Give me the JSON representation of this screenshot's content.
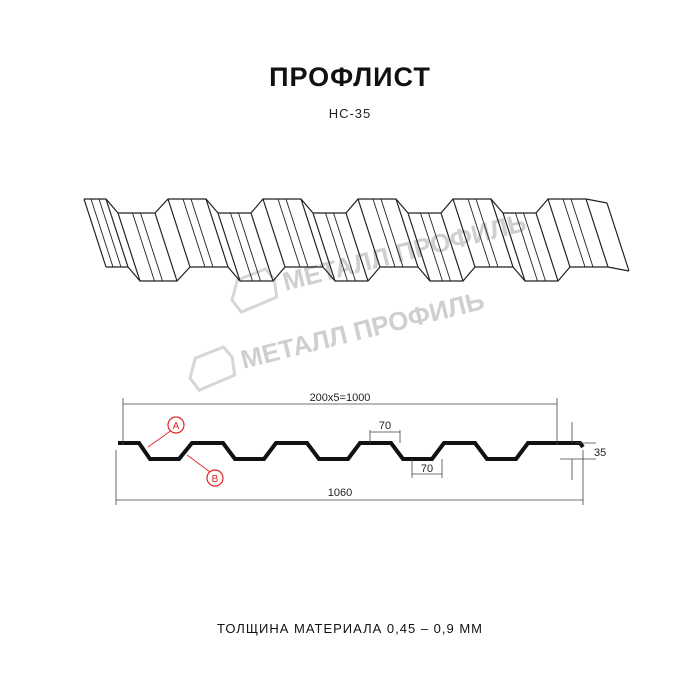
{
  "header": {
    "title": "ПРОФЛИСТ",
    "model": "НС-35"
  },
  "watermark": {
    "brand": "МЕТАЛЛ ПРОФИЛЬ"
  },
  "drawing": {
    "dim_pitch": "200x5=1000",
    "dim_top": "70",
    "dim_bottom": "70",
    "dim_height": "35",
    "dim_total": "1060",
    "label_a": "A",
    "label_b": "B",
    "accent_color": "#e02020"
  },
  "footer": {
    "thickness": "ТОЛЩИНА МАТЕРИАЛА 0,45 – 0,9 ММ"
  }
}
